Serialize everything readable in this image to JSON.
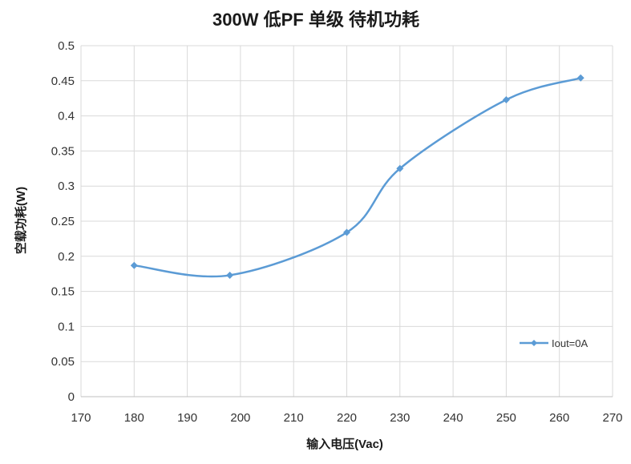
{
  "chart_data": {
    "type": "line",
    "title": "300W 低PF 单级 待机功耗",
    "xlabel": "输入电压(Vac)",
    "ylabel": "空载功耗(W)",
    "xlim": [
      170,
      270
    ],
    "ylim": [
      0,
      0.5
    ],
    "x_ticks": [
      "170",
      "180",
      "190",
      "200",
      "210",
      "220",
      "230",
      "240",
      "250",
      "260",
      "270"
    ],
    "y_ticks": [
      "0",
      "0.05",
      "0.1",
      "0.15",
      "0.2",
      "0.25",
      "0.3",
      "0.35",
      "0.4",
      "0.45",
      "0.5"
    ],
    "grid": true,
    "legend_position": "right",
    "smooth": true,
    "series": [
      {
        "name": "Iout=0A",
        "color": "#5b9bd5",
        "marker": "diamond",
        "x": [
          180,
          198,
          220,
          230,
          250,
          264
        ],
        "y": [
          0.187,
          0.173,
          0.234,
          0.325,
          0.423,
          0.454
        ]
      }
    ]
  }
}
